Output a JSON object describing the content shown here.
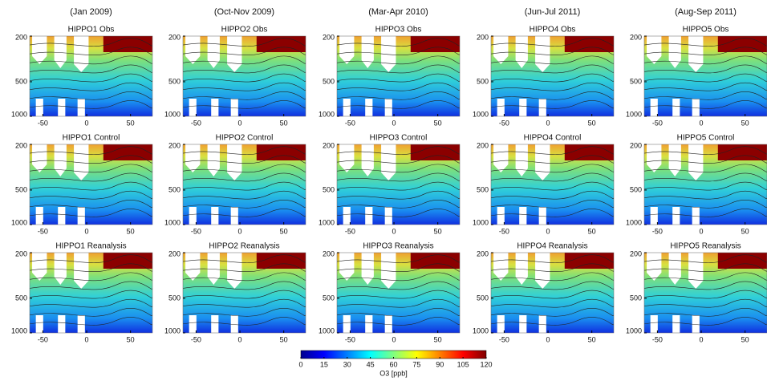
{
  "column_titles": [
    "(Jan 2009)",
    "(Oct-Nov 2009)",
    "(Mar-Apr 2010)",
    "(Jun-Jul 2011)",
    "(Aug-Sep 2011)"
  ],
  "chart_data": [
    {
      "type": "contour",
      "title": "HIPPO1 Obs",
      "xlim": [
        -65,
        75
      ],
      "ylim": [
        1000,
        200
      ],
      "xticks": [
        -50,
        0,
        50
      ],
      "yticks": [
        200,
        500,
        1000
      ],
      "log_y": true
    },
    {
      "type": "contour",
      "title": "HIPPO2 Obs",
      "xlim": [
        -65,
        75
      ],
      "ylim": [
        1000,
        200
      ],
      "xticks": [
        -50,
        0,
        50
      ],
      "yticks": [
        200,
        500,
        1000
      ],
      "log_y": true
    },
    {
      "type": "contour",
      "title": "HIPPO3 Obs",
      "xlim": [
        -65,
        75
      ],
      "ylim": [
        1000,
        200
      ],
      "xticks": [
        -50,
        0,
        50
      ],
      "yticks": [
        200,
        500,
        1000
      ],
      "log_y": true
    },
    {
      "type": "contour",
      "title": "HIPPO4 Obs",
      "xlim": [
        -65,
        75
      ],
      "ylim": [
        1000,
        200
      ],
      "xticks": [
        -50,
        0,
        50
      ],
      "yticks": [
        200,
        500,
        1000
      ],
      "log_y": true
    },
    {
      "type": "contour",
      "title": "HIPPO5 Obs",
      "xlim": [
        -65,
        75
      ],
      "ylim": [
        1000,
        200
      ],
      "xticks": [
        -50,
        0,
        50
      ],
      "yticks": [
        200,
        500,
        1000
      ],
      "log_y": true
    },
    {
      "type": "contour",
      "title": "HIPPO1 Control",
      "xlim": [
        -65,
        75
      ],
      "ylim": [
        1000,
        200
      ],
      "xticks": [
        -50,
        0,
        50
      ],
      "yticks": [
        200,
        500,
        1000
      ],
      "log_y": true
    },
    {
      "type": "contour",
      "title": "HIPPO2 Control",
      "xlim": [
        -65,
        75
      ],
      "ylim": [
        1000,
        200
      ],
      "xticks": [
        -50,
        0,
        50
      ],
      "yticks": [
        200,
        500,
        1000
      ],
      "log_y": true
    },
    {
      "type": "contour",
      "title": "HIPPO3 Control",
      "xlim": [
        -65,
        75
      ],
      "ylim": [
        1000,
        200
      ],
      "xticks": [
        -50,
        0,
        50
      ],
      "yticks": [
        200,
        500,
        1000
      ],
      "log_y": true
    },
    {
      "type": "contour",
      "title": "HIPPO4 Control",
      "xlim": [
        -65,
        75
      ],
      "ylim": [
        1000,
        200
      ],
      "xticks": [
        -50,
        0,
        50
      ],
      "yticks": [
        200,
        500,
        1000
      ],
      "log_y": true
    },
    {
      "type": "contour",
      "title": "HIPPO5 Control",
      "xlim": [
        -65,
        75
      ],
      "ylim": [
        1000,
        200
      ],
      "xticks": [
        -50,
        0,
        50
      ],
      "yticks": [
        200,
        500,
        1000
      ],
      "log_y": true
    },
    {
      "type": "contour",
      "title": "HIPPO1 Reanalysis",
      "xlim": [
        -65,
        75
      ],
      "ylim": [
        1000,
        200
      ],
      "xticks": [
        -50,
        0,
        50
      ],
      "yticks": [
        200,
        500,
        1000
      ],
      "log_y": true
    },
    {
      "type": "contour",
      "title": "HIPPO2 Reanalysis",
      "xlim": [
        -65,
        75
      ],
      "ylim": [
        1000,
        200
      ],
      "xticks": [
        -50,
        0,
        50
      ],
      "yticks": [
        200,
        500,
        1000
      ],
      "log_y": true
    },
    {
      "type": "contour",
      "title": "HIPPO3 Reanalysis",
      "xlim": [
        -65,
        75
      ],
      "ylim": [
        1000,
        200
      ],
      "xticks": [
        -50,
        0,
        50
      ],
      "yticks": [
        200,
        500,
        1000
      ],
      "log_y": true
    },
    {
      "type": "contour",
      "title": "HIPPO4 Reanalysis",
      "xlim": [
        -65,
        75
      ],
      "ylim": [
        1000,
        200
      ],
      "xticks": [
        -50,
        0,
        50
      ],
      "yticks": [
        200,
        500,
        1000
      ],
      "log_y": true
    },
    {
      "type": "contour",
      "title": "HIPPO5 Reanalysis",
      "xlim": [
        -65,
        75
      ],
      "ylim": [
        1000,
        200
      ],
      "xticks": [
        -50,
        0,
        50
      ],
      "yticks": [
        200,
        500,
        1000
      ],
      "log_y": true
    },
    {
      "type": "colorbar",
      "xlabel": "O3 [ppb]",
      "xlim": [
        0,
        120
      ],
      "xticks": [
        0,
        15,
        30,
        45,
        60,
        75,
        90,
        105,
        120
      ],
      "colormap": "jet"
    }
  ]
}
